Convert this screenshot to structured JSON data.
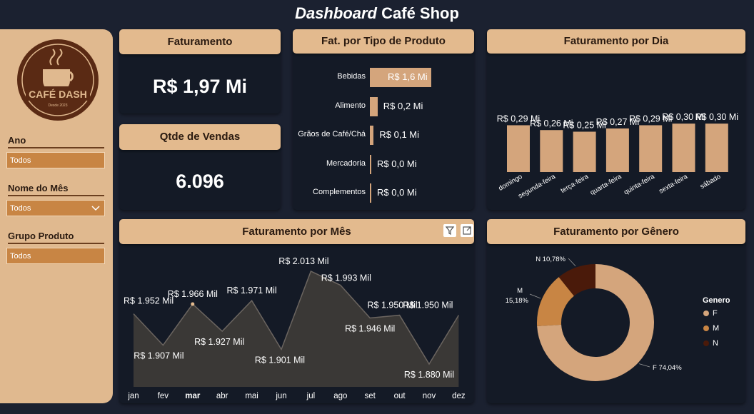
{
  "page": {
    "title_italic": "Dashboard",
    "title_rest": "Café Shop"
  },
  "sidebar": {
    "logo_text": "CAFÉ DASH",
    "logo_subtext": "Desde 2023",
    "filters": [
      {
        "label": "Ano",
        "value": "Todos"
      },
      {
        "label": "Nome do Mês",
        "value": "Todos"
      },
      {
        "label": "Grupo Produto",
        "value": "Todos"
      }
    ]
  },
  "kpis": {
    "faturamento_title": "Faturamento",
    "faturamento_value": "R$ 1,97 Mi",
    "vendas_title": "Qtde de Vendas",
    "vendas_value": "6.096"
  },
  "colors": {
    "accent": "#e3ba8e",
    "bar": "#d4a57c",
    "area": "#3a3836",
    "donut_f": "#d4a57c",
    "donut_m": "#c88544",
    "donut_n": "#4a1a0a"
  },
  "chart_data": [
    {
      "type": "bar",
      "orientation": "horizontal",
      "title": "Fat. por Tipo de Produto",
      "categories": [
        "Bebidas",
        "Alimento",
        "Grãos de Café/Chá",
        "Mercadoria",
        "Complementos"
      ],
      "values": [
        1.6,
        0.2,
        0.1,
        0.0,
        0.0
      ],
      "data_labels": [
        "R$ 1,6 Mi",
        "R$ 0,2 Mi",
        "R$ 0,1 Mi",
        "R$ 0,0 Mi",
        "R$ 0,0 Mi"
      ]
    },
    {
      "type": "bar",
      "title": "Faturamento por Dia",
      "categories": [
        "domingo",
        "segunda-feira",
        "terça-feira",
        "quarta-feira",
        "quinta-feira",
        "sexta-feira",
        "sábado"
      ],
      "values": [
        0.29,
        0.26,
        0.25,
        0.27,
        0.29,
        0.3,
        0.3
      ],
      "data_labels": [
        "R$ 0,29 Mi",
        "R$ 0,26 Mi",
        "R$ 0,25 Mi",
        "R$ 0,27 Mi",
        "R$ 0,29 Mi",
        "R$ 0,30 Mi",
        "R$ 0,30 Mi"
      ]
    },
    {
      "type": "area",
      "title": "Faturamento por Mês",
      "categories": [
        "jan",
        "fev",
        "mar",
        "abr",
        "mai",
        "jun",
        "jul",
        "ago",
        "set",
        "out",
        "nov",
        "dez"
      ],
      "values": [
        1952,
        1907,
        1966,
        1927,
        1971,
        1901,
        2013,
        1993,
        1946,
        1950,
        1880,
        1950
      ],
      "data_labels": [
        "R$ 1.952 Mil",
        "R$ 1.907 Mil",
        "R$ 1.966 Mil",
        "R$ 1.927 Mil",
        "R$ 1.971 Mil",
        "R$ 1.901 Mil",
        "R$ 2.013 Mil",
        "R$ 1.993 Mil",
        "R$ 1.946 Mil",
        "R$ 1.950 Mil",
        "R$ 1.880 Mil",
        "R$ 1.950 Mil"
      ],
      "highlighted_category": "mar"
    },
    {
      "type": "pie",
      "variant": "donut",
      "title": "Faturamento por Gênero",
      "legend_title": "Genero",
      "legend_position": "right",
      "labels": [
        "F",
        "M",
        "N"
      ],
      "values": [
        74.04,
        15.18,
        10.78
      ],
      "data_labels": [
        "F 74,04%",
        "M 15,18%",
        "N 10,78%"
      ]
    }
  ]
}
